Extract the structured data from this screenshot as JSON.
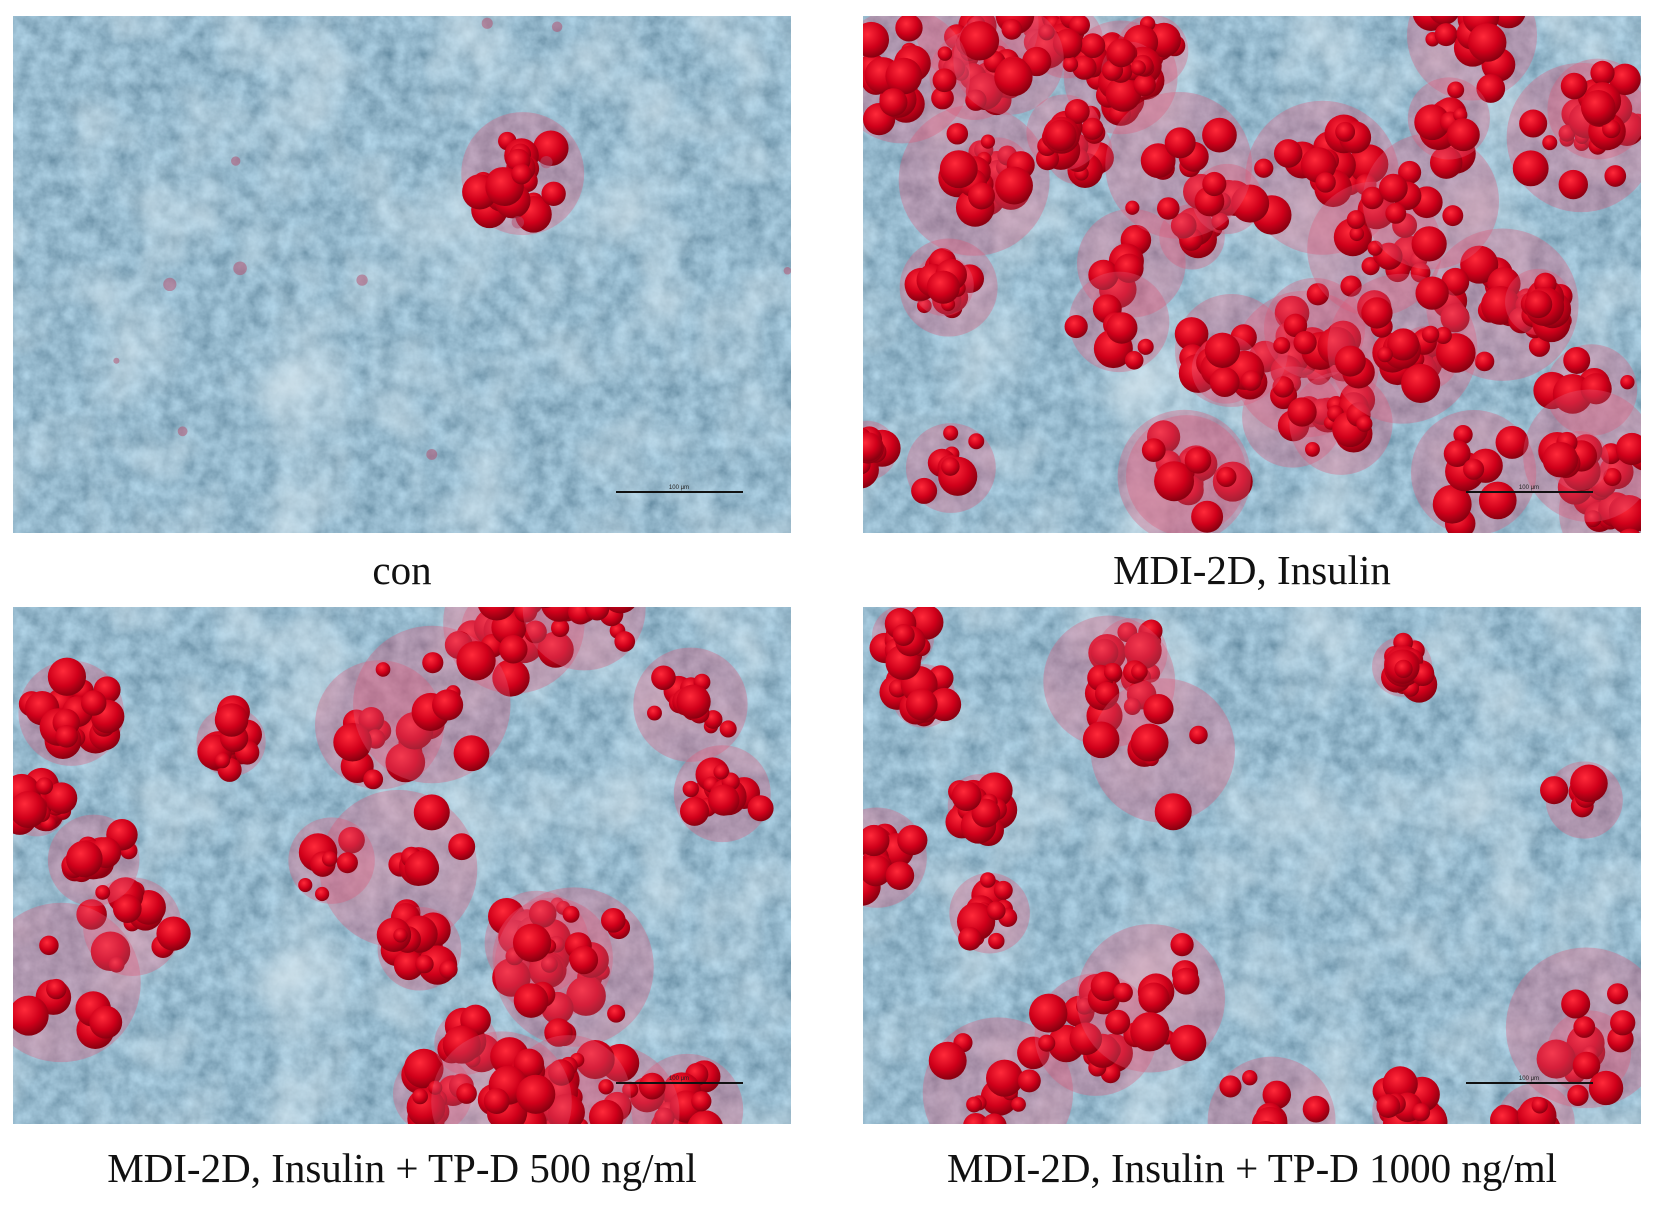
{
  "panels": [
    {
      "caption": "con"
    },
    {
      "caption": "MDI-2D, Insulin"
    },
    {
      "caption": "MDI-2D, Insulin + TP-D 500 ng/ml"
    },
    {
      "caption": "MDI-2D, Insulin + TP-D 1000 ng/ml"
    }
  ],
  "scale_bar_label": "100 μm"
}
